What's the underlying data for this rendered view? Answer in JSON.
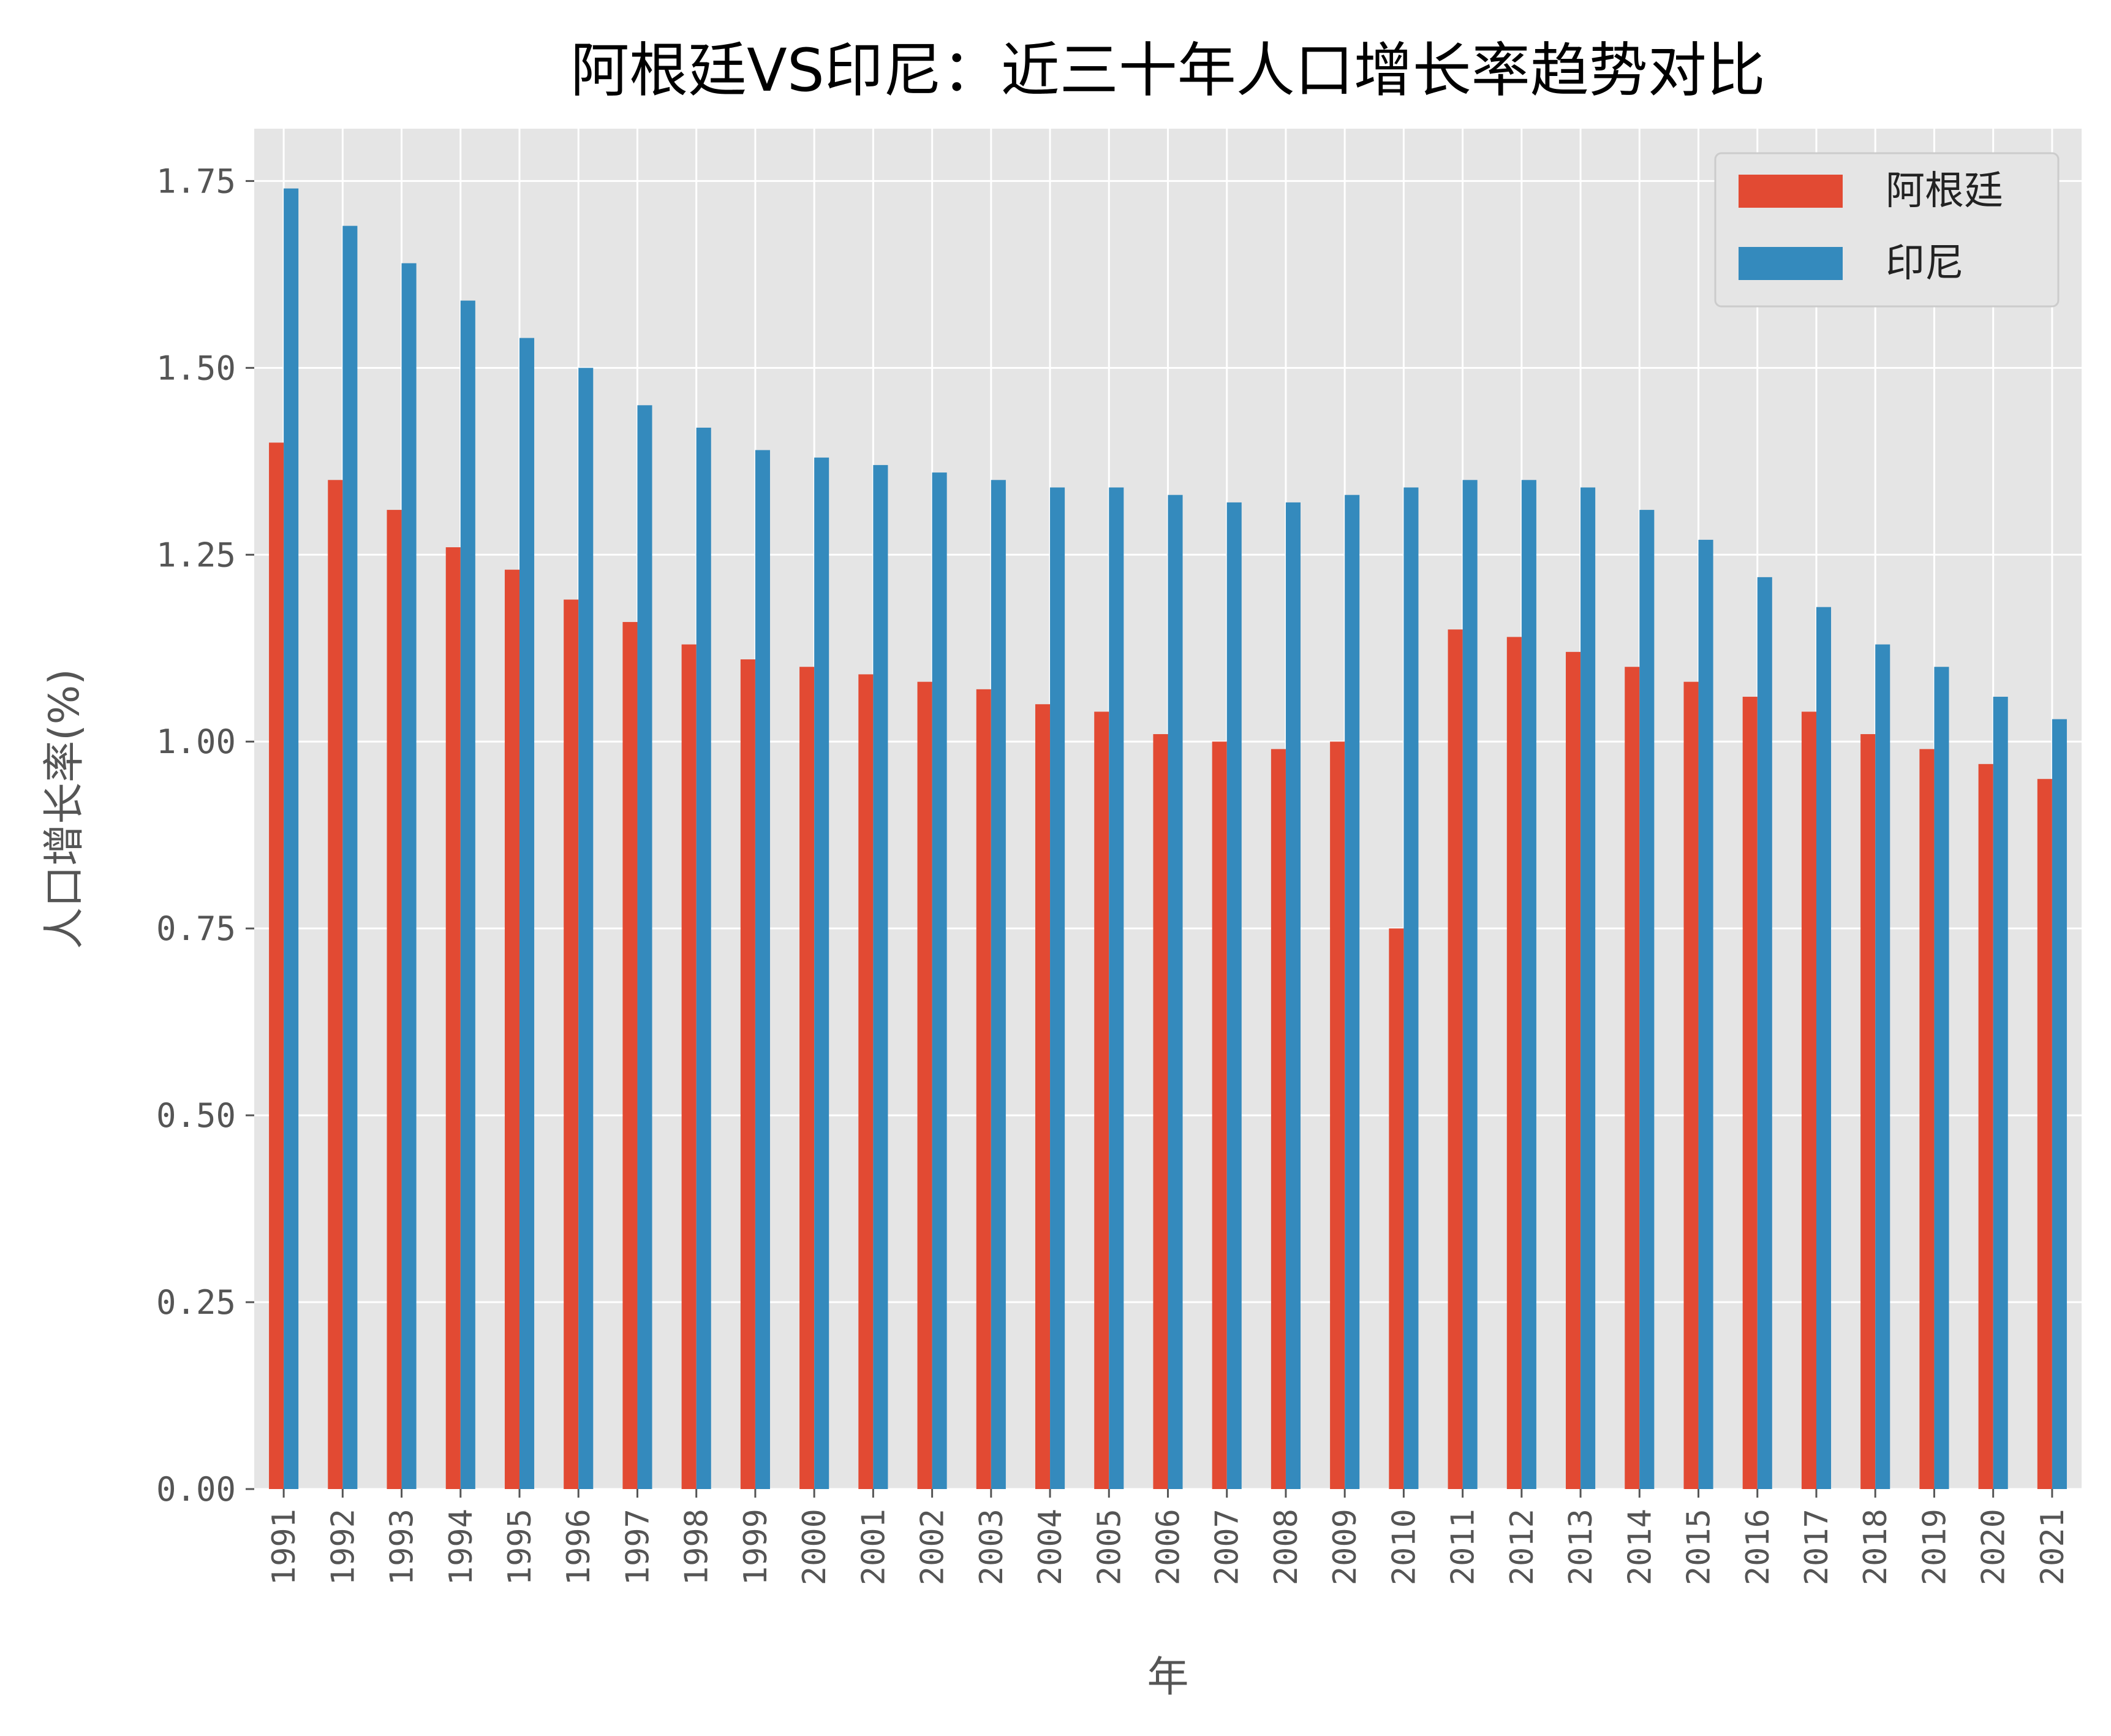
{
  "chart_data": {
    "type": "bar",
    "title": "阿根廷VS印尼：近三十年人口增长率趋势对比",
    "xlabel": "年",
    "ylabel": "人口增长率(%)",
    "ylim": [
      0,
      1.82
    ],
    "yticks": [
      "0.00",
      "0.25",
      "0.50",
      "0.75",
      "1.00",
      "1.25",
      "1.50",
      "1.75"
    ],
    "ytick_values": [
      0,
      0.25,
      0.5,
      0.75,
      1.0,
      1.25,
      1.5,
      1.75
    ],
    "grid": true,
    "legend_position": "top-right",
    "categories": [
      "1991",
      "1992",
      "1993",
      "1994",
      "1995",
      "1996",
      "1997",
      "1998",
      "1999",
      "2000",
      "2001",
      "2002",
      "2003",
      "2004",
      "2005",
      "2006",
      "2007",
      "2008",
      "2009",
      "2010",
      "2011",
      "2012",
      "2013",
      "2014",
      "2015",
      "2016",
      "2017",
      "2018",
      "2019",
      "2020",
      "2021"
    ],
    "series": [
      {
        "name": "阿根廷",
        "color": "#E24A33",
        "values": [
          1.4,
          1.35,
          1.31,
          1.26,
          1.23,
          1.19,
          1.16,
          1.13,
          1.11,
          1.1,
          1.09,
          1.08,
          1.07,
          1.05,
          1.04,
          1.01,
          1.0,
          0.99,
          1.0,
          0.75,
          1.15,
          1.14,
          1.12,
          1.1,
          1.08,
          1.06,
          1.04,
          1.01,
          0.99,
          0.97,
          0.95
        ]
      },
      {
        "name": "印尼",
        "color": "#348ABD",
        "values": [
          1.74,
          1.69,
          1.64,
          1.59,
          1.54,
          1.5,
          1.45,
          1.42,
          1.39,
          1.38,
          1.37,
          1.36,
          1.35,
          1.34,
          1.34,
          1.33,
          1.32,
          1.32,
          1.33,
          1.34,
          1.35,
          1.35,
          1.34,
          1.31,
          1.27,
          1.22,
          1.18,
          1.13,
          1.1,
          1.06,
          1.03
        ]
      }
    ]
  },
  "style": {
    "plot_background": "#E5E5E5",
    "grid_color": "#FFFFFF"
  }
}
